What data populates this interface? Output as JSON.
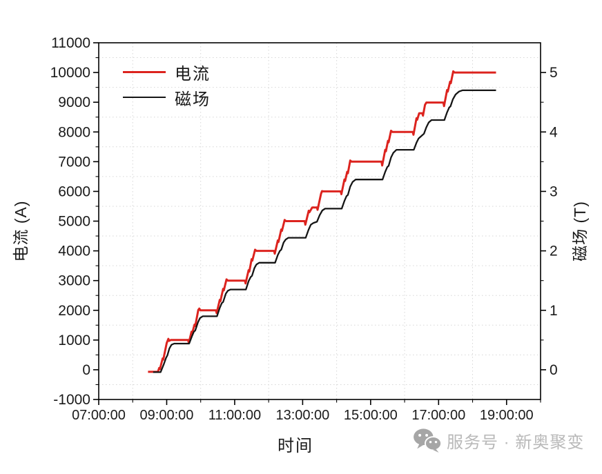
{
  "chart_data": {
    "type": "line",
    "title": "",
    "xlabel": "时间",
    "ylabel_left": "电流 (A)",
    "ylabel_right": "磁场 (T)",
    "x_axis": {
      "unit": "time of day",
      "range_hours": [
        7,
        20
      ],
      "major_ticks_hours": [
        7,
        9,
        11,
        13,
        15,
        17,
        19
      ],
      "major_tick_labels": [
        "07:00:00",
        "09:00:00",
        "11:00:00",
        "13:00:00",
        "15:00:00",
        "17:00:00",
        "19:00:00"
      ],
      "minor_ticks_hours": [
        8,
        10,
        12,
        14,
        16,
        18,
        20
      ],
      "minor_gridlines_hours": [
        8,
        10,
        12,
        14,
        16,
        18
      ],
      "grid_style": "dotted"
    },
    "y_left": {
      "range": [
        -1000,
        11000
      ],
      "major_ticks": [
        -1000,
        0,
        1000,
        2000,
        3000,
        4000,
        5000,
        6000,
        7000,
        8000,
        9000,
        10000,
        11000
      ],
      "major_tick_labels": [
        "-1000",
        "0",
        "1000",
        "2000",
        "3000",
        "4000",
        "5000",
        "6000",
        "7000",
        "8000",
        "9000",
        "10000",
        "11000"
      ],
      "minor_ticks": [
        -500,
        500,
        1500,
        2500,
        3500,
        4500,
        5500,
        6500,
        7500,
        8500,
        9500,
        10500
      ],
      "minor_gridlines": [
        -500,
        500,
        1500,
        2500,
        3500,
        4500,
        5500,
        6500,
        7500,
        8500,
        9500,
        10500
      ]
    },
    "y_right": {
      "range": [
        -0.5,
        5.5
      ],
      "major_ticks": [
        0,
        1,
        2,
        3,
        4,
        5
      ],
      "major_tick_labels": [
        "0",
        "1",
        "2",
        "3",
        "4",
        "5"
      ],
      "minor_ticks": [
        0.5,
        1.5,
        2.5,
        3.5,
        4.5
      ]
    },
    "legend": {
      "position": "top-left",
      "entries": [
        "电流",
        "磁场"
      ]
    },
    "colors": {
      "grid": "#d6d6d6",
      "frame": "#000000",
      "tick_text": "#1a1a1a"
    },
    "series": [
      {
        "name": "电流",
        "axis": "left",
        "color": "#dc231e",
        "stroke_width": 3,
        "points": [
          [
            8.45,
            -70
          ],
          [
            8.74,
            -70
          ],
          [
            8.78,
            60
          ],
          [
            8.8,
            20
          ],
          [
            8.88,
            380
          ],
          [
            8.9,
            340
          ],
          [
            9.0,
            900
          ],
          [
            9.05,
            1040
          ],
          [
            9.07,
            970
          ],
          [
            9.12,
            1000
          ],
          [
            9.63,
            1000
          ],
          [
            9.65,
            905
          ],
          [
            9.73,
            1280
          ],
          [
            9.75,
            1230
          ],
          [
            9.82,
            1520
          ],
          [
            9.84,
            1470
          ],
          [
            9.93,
            2010
          ],
          [
            9.96,
            2060
          ],
          [
            9.99,
            2000
          ],
          [
            10.45,
            2000
          ],
          [
            10.47,
            1905
          ],
          [
            10.56,
            2350
          ],
          [
            10.58,
            2300
          ],
          [
            10.66,
            2720
          ],
          [
            10.68,
            2670
          ],
          [
            10.76,
            3040
          ],
          [
            10.8,
            3000
          ],
          [
            11.3,
            3000
          ],
          [
            11.32,
            2905
          ],
          [
            11.41,
            3350
          ],
          [
            11.43,
            3300
          ],
          [
            11.5,
            3720
          ],
          [
            11.52,
            3670
          ],
          [
            11.6,
            4040
          ],
          [
            11.64,
            4000
          ],
          [
            12.16,
            4000
          ],
          [
            12.18,
            3905
          ],
          [
            12.27,
            4350
          ],
          [
            12.29,
            4300
          ],
          [
            12.37,
            4720
          ],
          [
            12.39,
            4670
          ],
          [
            12.47,
            5040
          ],
          [
            12.51,
            5000
          ],
          [
            13.06,
            5000
          ],
          [
            13.08,
            4880
          ],
          [
            13.18,
            5350
          ],
          [
            13.2,
            5300
          ],
          [
            13.28,
            5460
          ],
          [
            13.42,
            5460
          ],
          [
            13.44,
            5380
          ],
          [
            13.54,
            5920
          ],
          [
            13.57,
            6010
          ],
          [
            13.61,
            6000
          ],
          [
            14.12,
            6000
          ],
          [
            14.14,
            5905
          ],
          [
            14.23,
            6400
          ],
          [
            14.25,
            6350
          ],
          [
            14.31,
            6660
          ],
          [
            14.33,
            6610
          ],
          [
            14.4,
            7040
          ],
          [
            14.44,
            7000
          ],
          [
            15.32,
            7000
          ],
          [
            15.34,
            6870
          ],
          [
            15.43,
            7400
          ],
          [
            15.45,
            7350
          ],
          [
            15.51,
            7700
          ],
          [
            15.53,
            7650
          ],
          [
            15.6,
            8040
          ],
          [
            15.64,
            8000
          ],
          [
            16.24,
            8000
          ],
          [
            16.26,
            7905
          ],
          [
            16.35,
            8460
          ],
          [
            16.37,
            8410
          ],
          [
            16.43,
            8630
          ],
          [
            16.52,
            8630
          ],
          [
            16.54,
            8550
          ],
          [
            16.6,
            8910
          ],
          [
            16.64,
            8990
          ],
          [
            17.14,
            8990
          ],
          [
            17.16,
            8870
          ],
          [
            17.25,
            9410
          ],
          [
            17.27,
            9360
          ],
          [
            17.34,
            9690
          ],
          [
            17.36,
            9640
          ],
          [
            17.43,
            10040
          ],
          [
            17.47,
            10000
          ],
          [
            18.69,
            10000
          ]
        ]
      },
      {
        "name": "磁场",
        "axis": "right",
        "color": "#151515",
        "stroke_width": 2.3,
        "points": [
          [
            8.6,
            -0.04
          ],
          [
            8.82,
            -0.04
          ],
          [
            8.92,
            0.1
          ],
          [
            8.98,
            0.2
          ],
          [
            9.02,
            0.24
          ],
          [
            9.08,
            0.36
          ],
          [
            9.14,
            0.42
          ],
          [
            9.22,
            0.44
          ],
          [
            9.66,
            0.44
          ],
          [
            9.74,
            0.56
          ],
          [
            9.8,
            0.64
          ],
          [
            9.84,
            0.66
          ],
          [
            9.92,
            0.8
          ],
          [
            9.98,
            0.87
          ],
          [
            10.06,
            0.9
          ],
          [
            10.48,
            0.9
          ],
          [
            10.56,
            1.04
          ],
          [
            10.62,
            1.12
          ],
          [
            10.66,
            1.14
          ],
          [
            10.74,
            1.28
          ],
          [
            10.8,
            1.33
          ],
          [
            10.88,
            1.35
          ],
          [
            11.33,
            1.35
          ],
          [
            11.41,
            1.49
          ],
          [
            11.47,
            1.56
          ],
          [
            11.51,
            1.58
          ],
          [
            11.58,
            1.71
          ],
          [
            11.64,
            1.77
          ],
          [
            11.72,
            1.8
          ],
          [
            12.19,
            1.8
          ],
          [
            12.27,
            1.93
          ],
          [
            12.33,
            2.0
          ],
          [
            12.37,
            2.02
          ],
          [
            12.44,
            2.14
          ],
          [
            12.5,
            2.19
          ],
          [
            12.58,
            2.22
          ],
          [
            13.09,
            2.22
          ],
          [
            13.17,
            2.35
          ],
          [
            13.24,
            2.44
          ],
          [
            13.32,
            2.47
          ],
          [
            13.42,
            2.49
          ],
          [
            13.5,
            2.6
          ],
          [
            13.58,
            2.68
          ],
          [
            13.66,
            2.71
          ],
          [
            14.15,
            2.71
          ],
          [
            14.23,
            2.84
          ],
          [
            14.29,
            2.92
          ],
          [
            14.33,
            2.94
          ],
          [
            14.4,
            3.08
          ],
          [
            14.47,
            3.16
          ],
          [
            14.56,
            3.2
          ],
          [
            15.35,
            3.2
          ],
          [
            15.43,
            3.33
          ],
          [
            15.49,
            3.41
          ],
          [
            15.53,
            3.43
          ],
          [
            15.6,
            3.57
          ],
          [
            15.67,
            3.65
          ],
          [
            15.76,
            3.7
          ],
          [
            16.27,
            3.7
          ],
          [
            16.35,
            3.82
          ],
          [
            16.41,
            3.89
          ],
          [
            16.49,
            3.93
          ],
          [
            16.57,
            3.97
          ],
          [
            16.64,
            4.08
          ],
          [
            16.71,
            4.16
          ],
          [
            16.79,
            4.2
          ],
          [
            17.17,
            4.2
          ],
          [
            17.25,
            4.33
          ],
          [
            17.31,
            4.41
          ],
          [
            17.35,
            4.43
          ],
          [
            17.42,
            4.55
          ],
          [
            17.5,
            4.63
          ],
          [
            17.6,
            4.68
          ],
          [
            17.7,
            4.7
          ],
          [
            18.69,
            4.7
          ]
        ]
      }
    ]
  },
  "watermark": {
    "icon": "wechat-chat-bubbles-icon",
    "text": "服务号 · 新奥聚变"
  }
}
